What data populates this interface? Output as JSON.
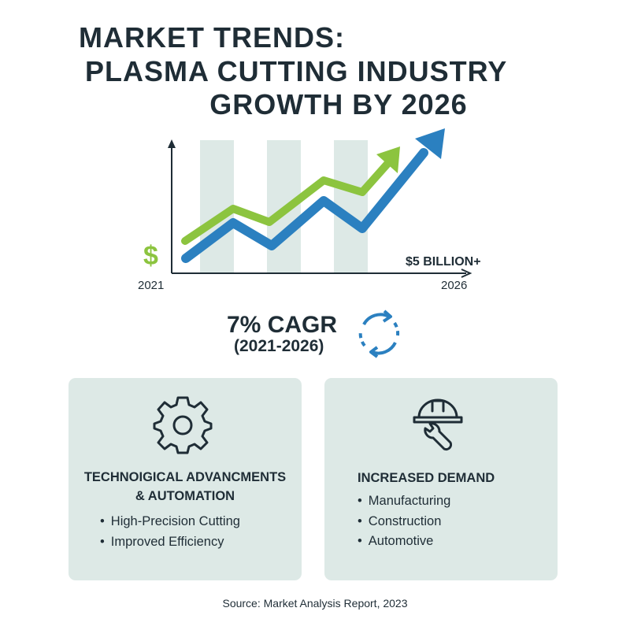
{
  "title": {
    "line1": "MARKET TRENDS:",
    "line2": "PLASMA CUTTING INDUSTRY",
    "line3": "GROWTH BY 2026"
  },
  "chart": {
    "currency_symbol": "$",
    "start_label": "2021",
    "end_label": "2026",
    "target_label": "$5 BILLION+",
    "colors": {
      "green": "#8cc43f",
      "blue": "#2b80c0",
      "bands": "#dde9e6"
    }
  },
  "cagr": {
    "value": "7% CAGR",
    "period": "(2021-2026)",
    "icon": "cycle-arrows-icon"
  },
  "cards": [
    {
      "icon": "gear-icon",
      "heading_line1": "TECHNOIGICAL ADVANCMENTS",
      "heading_line2": "& AUTOMATION",
      "items": [
        "High-Precision Cutting",
        "Improved Efficiency"
      ]
    },
    {
      "icon": "hard-hat-wrench-icon",
      "heading_line1": "INCREASED DEMAND",
      "items": [
        "Manufacturing",
        "Construction",
        "Automotive"
      ]
    }
  ],
  "source": "Source: Market Analysis Report, 2023"
}
